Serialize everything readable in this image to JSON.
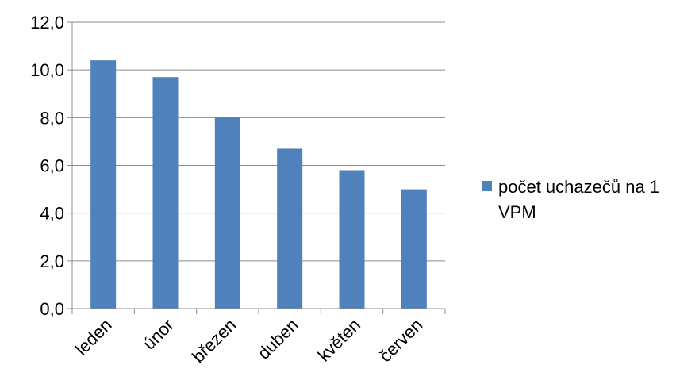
{
  "chart_data": {
    "type": "bar",
    "categories": [
      "leden",
      "únor",
      "březen",
      "duben",
      "květen",
      "červen"
    ],
    "series": [
      {
        "name": "počet uchazečů na 1 VPM",
        "values": [
          10.4,
          9.7,
          8.0,
          6.7,
          5.8,
          5.0
        ],
        "color": "#4f81bd"
      }
    ],
    "y_ticks": [
      "0,0",
      "2,0",
      "4,0",
      "6,0",
      "8,0",
      "10,0",
      "12,0"
    ],
    "ylim": [
      0,
      12
    ],
    "grid": true,
    "legend_position": "right",
    "legend_lines": [
      "počet uchazečů na 1",
      "VPM"
    ],
    "title": "",
    "xlabel": "",
    "ylabel": ""
  }
}
